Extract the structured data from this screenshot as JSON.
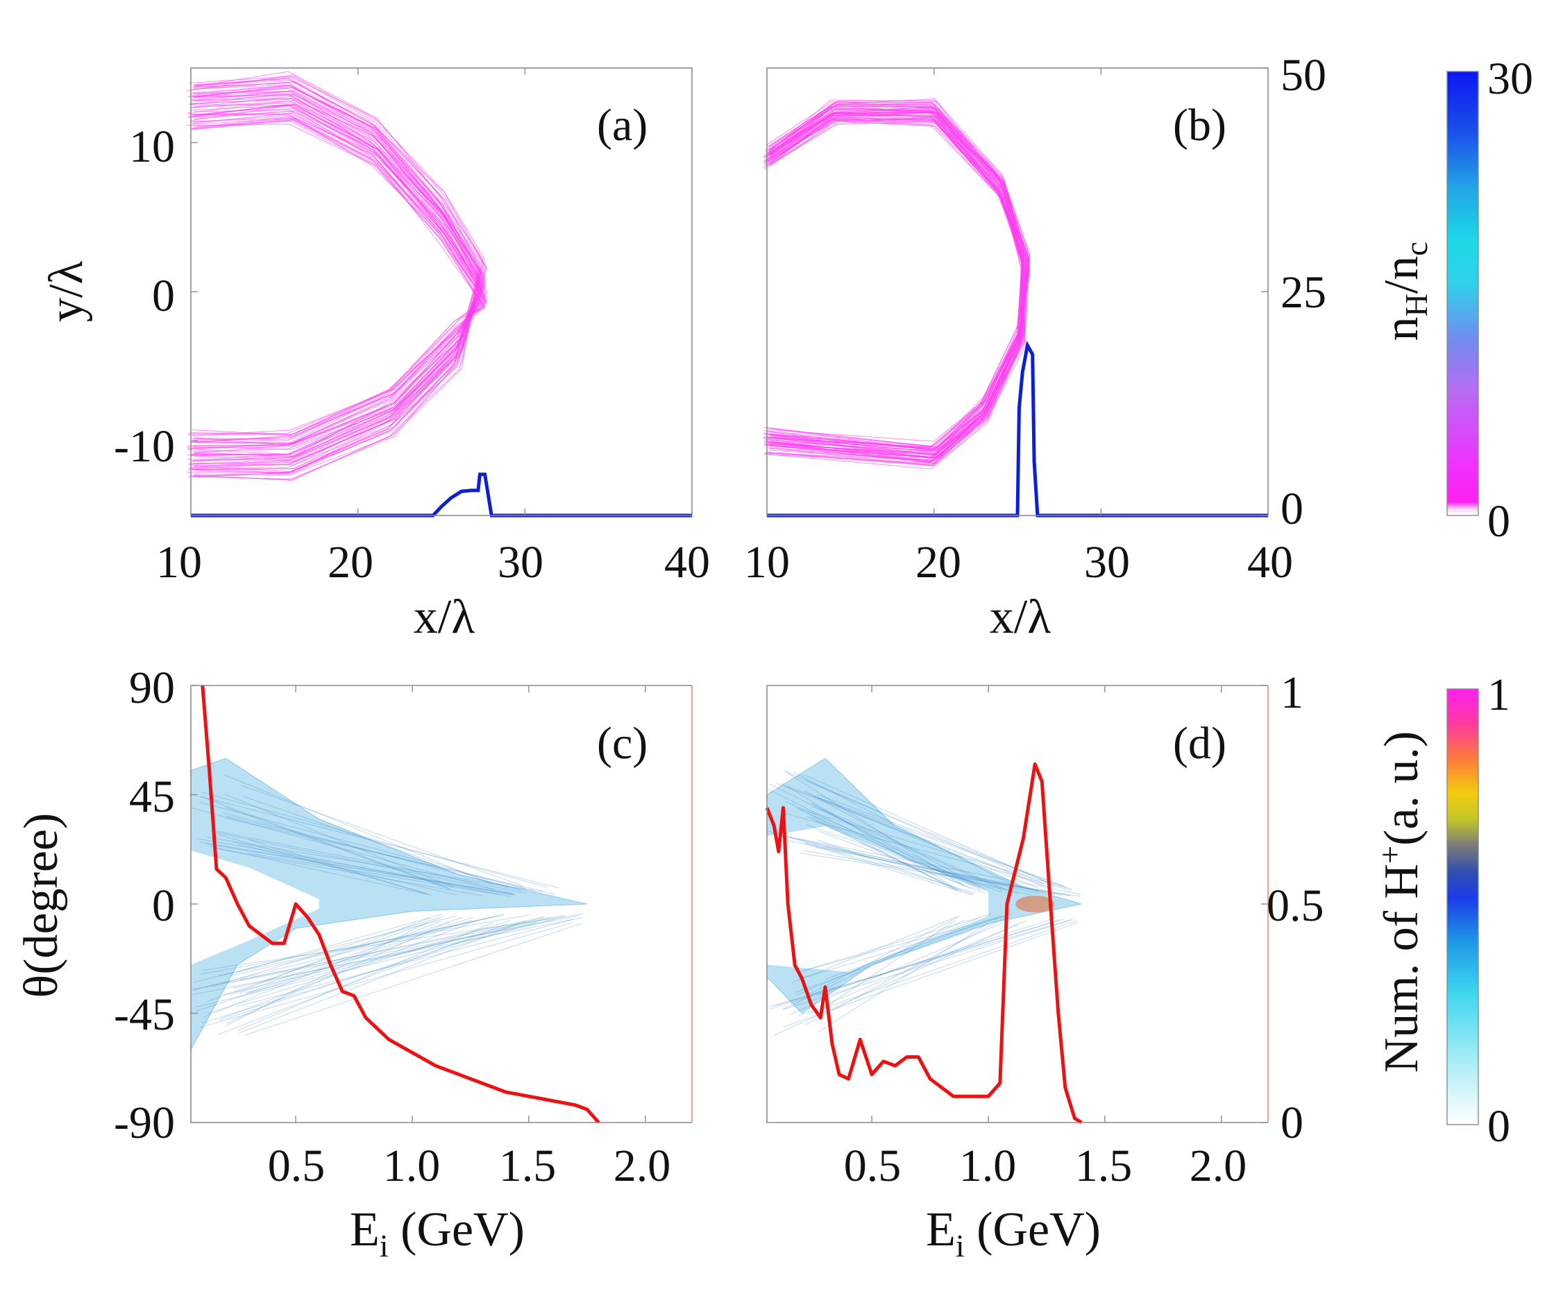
{
  "colors": {
    "shell": "#ff3cf0",
    "density_line": "#0a1fd8",
    "spectrum_line": "#ee1111",
    "scatter": "#3aa6e0"
  },
  "chart_data": [
    {
      "id": "a",
      "type": "scatter",
      "panel_label": "(a)",
      "xlabel": "x/λ",
      "ylabel": "y/λ",
      "xlim": [
        10,
        40
      ],
      "ylim": [
        -15,
        15
      ],
      "x_ticks": [
        "10",
        "20",
        "30",
        "40"
      ],
      "y_ticks": [
        "10",
        "0",
        "-10"
      ],
      "y_tick_values": [
        10,
        0,
        -10
      ],
      "right_axis": {
        "ylim": [
          0,
          50
        ],
        "ticks": [],
        "tick_values": []
      },
      "shell": {
        "description_points": [
          [
            10,
            12.5
          ],
          [
            16,
            13
          ],
          [
            21,
            10
          ],
          [
            25,
            5
          ],
          [
            27.5,
            0.5
          ],
          [
            26,
            -3.5
          ],
          [
            22,
            -8
          ],
          [
            16,
            -11
          ],
          [
            10,
            -11
          ]
        ]
      },
      "density_line": {
        "name": "n_H/n_c along axis",
        "x": [
          10,
          24.5,
          25,
          25.6,
          26.2,
          26.8,
          27.2,
          27.3,
          27.6,
          28,
          40
        ],
        "y": [
          0,
          0,
          1,
          2,
          2.7,
          2.8,
          2.8,
          4.6,
          4.6,
          0,
          0
        ]
      }
    },
    {
      "id": "b",
      "type": "scatter",
      "panel_label": "(b)",
      "xlabel": "x/λ",
      "ylabel": "",
      "xlim": [
        10,
        40
      ],
      "ylim": [
        -15,
        15
      ],
      "x_ticks": [
        "10",
        "20",
        "30",
        "40"
      ],
      "y_ticks": [],
      "y_tick_values": [],
      "right_axis": {
        "ylim": [
          0,
          50
        ],
        "ticks": [
          "50",
          "25",
          "0"
        ],
        "tick_values": [
          50,
          25,
          0
        ]
      },
      "shell": {
        "description_points": [
          [
            10,
            9
          ],
          [
            14,
            12
          ],
          [
            20,
            12
          ],
          [
            24,
            7
          ],
          [
            25.5,
            2
          ],
          [
            25.2,
            -3
          ],
          [
            23,
            -8
          ],
          [
            20,
            -11
          ],
          [
            10,
            -10
          ]
        ]
      },
      "density_line": {
        "name": "n_H/n_c along axis",
        "x": [
          10,
          25.0,
          25.1,
          25.3,
          25.6,
          25.9,
          26.0,
          26.2,
          40
        ],
        "y": [
          0,
          0,
          12,
          16,
          19,
          18,
          6,
          0,
          0
        ]
      }
    },
    {
      "id": "c",
      "type": "scatter",
      "panel_label": "(c)",
      "xlabel": "E",
      "xlabel_sub": "i",
      "xlabel_unit": " (GeV)",
      "ylabel": "θ(degree)",
      "xlim": [
        0.05,
        2.2
      ],
      "ylim": [
        -90,
        90
      ],
      "x_ticks": [
        "0.5",
        "1.0",
        "1.5",
        "2.0"
      ],
      "x_tick_values": [
        0.5,
        1.0,
        1.5,
        2.0
      ],
      "y_ticks": [
        "90",
        "45",
        "0",
        "-45",
        "-90"
      ],
      "y_tick_values": [
        90,
        45,
        0,
        -45,
        -90
      ],
      "right_axis": {
        "ylim": [
          0,
          1
        ],
        "ticks": [],
        "tick_values": []
      },
      "angular_band": {
        "upper_edge": [
          [
            0.05,
            55
          ],
          [
            0.2,
            60
          ],
          [
            0.6,
            35
          ],
          [
            1.2,
            12
          ],
          [
            1.75,
            0
          ]
        ],
        "lower_edge": [
          [
            1.75,
            0
          ],
          [
            1.0,
            -3
          ],
          [
            0.5,
            -10
          ],
          [
            0.25,
            -25
          ],
          [
            0.05,
            -60
          ]
        ],
        "inner_gap_top": [
          [
            0.05,
            22
          ],
          [
            0.3,
            15
          ],
          [
            0.6,
            2
          ]
        ],
        "inner_gap_bottom": [
          [
            0.6,
            -2
          ],
          [
            0.3,
            -15
          ],
          [
            0.05,
            -25
          ]
        ]
      },
      "spectrum": {
        "name": "Number of H+ (a.u.)",
        "x": [
          0.1,
          0.13,
          0.16,
          0.2,
          0.25,
          0.3,
          0.35,
          0.4,
          0.45,
          0.5,
          0.55,
          0.6,
          0.65,
          0.7,
          0.75,
          0.8,
          0.9,
          1.0,
          1.1,
          1.2,
          1.3,
          1.4,
          1.5,
          1.6,
          1.7,
          1.75,
          1.8
        ],
        "y": [
          1.0,
          0.8,
          0.58,
          0.56,
          0.5,
          0.45,
          0.43,
          0.41,
          0.41,
          0.5,
          0.47,
          0.43,
          0.36,
          0.3,
          0.29,
          0.24,
          0.19,
          0.16,
          0.13,
          0.11,
          0.09,
          0.07,
          0.06,
          0.05,
          0.04,
          0.03,
          0.0
        ]
      }
    },
    {
      "id": "d",
      "type": "scatter",
      "panel_label": "(d)",
      "xlabel": "E",
      "xlabel_sub": "i",
      "xlabel_unit": " (GeV)",
      "ylabel": "",
      "xlim": [
        0.05,
        2.2
      ],
      "ylim": [
        -90,
        90
      ],
      "x_ticks": [
        "0.5",
        "1.0",
        "1.5",
        "2.0"
      ],
      "x_tick_values": [
        0.5,
        1.0,
        1.5,
        2.0
      ],
      "y_ticks": [],
      "y_tick_values": [],
      "right_axis": {
        "ylim": [
          0,
          1
        ],
        "ticks": [
          "1",
          "0.5",
          "0"
        ],
        "tick_values": [
          1,
          0.5,
          0
        ]
      },
      "angular_band": {
        "upper_edge": [
          [
            0.05,
            45
          ],
          [
            0.3,
            60
          ],
          [
            0.6,
            32
          ],
          [
            1.15,
            7
          ],
          [
            1.4,
            0
          ]
        ],
        "lower_edge": [
          [
            1.4,
            0
          ],
          [
            1.0,
            -8
          ],
          [
            0.5,
            -25
          ],
          [
            0.2,
            -45
          ],
          [
            0.05,
            -30
          ]
        ],
        "inner_gap_top": [
          [
            0.05,
            28
          ],
          [
            0.3,
            32
          ],
          [
            1.0,
            5
          ]
        ],
        "inner_gap_bottom": [
          [
            1.0,
            -5
          ],
          [
            0.4,
            -28
          ],
          [
            0.05,
            -25
          ]
        ]
      },
      "spectrum": {
        "name": "Number of H+ (a.u.)",
        "x": [
          0.05,
          0.08,
          0.1,
          0.12,
          0.14,
          0.17,
          0.2,
          0.24,
          0.28,
          0.3,
          0.33,
          0.36,
          0.4,
          0.45,
          0.5,
          0.55,
          0.6,
          0.65,
          0.7,
          0.75,
          0.8,
          0.85,
          0.9,
          0.95,
          1.0,
          1.05,
          1.08,
          1.15,
          1.2,
          1.23,
          1.26,
          1.3,
          1.33,
          1.37,
          1.4
        ],
        "y": [
          0.72,
          0.68,
          0.62,
          0.72,
          0.5,
          0.36,
          0.33,
          0.27,
          0.24,
          0.31,
          0.18,
          0.11,
          0.1,
          0.19,
          0.11,
          0.14,
          0.13,
          0.15,
          0.15,
          0.1,
          0.08,
          0.06,
          0.06,
          0.06,
          0.06,
          0.09,
          0.5,
          0.65,
          0.82,
          0.78,
          0.55,
          0.25,
          0.08,
          0.01,
          0.0
        ]
      }
    }
  ],
  "colorbars": [
    {
      "id": "density",
      "label_main": "n",
      "label_sub1": "H",
      "label_mid": "/n",
      "label_sub2": "c",
      "min_label": "0",
      "max_label": "30",
      "min": 0,
      "max": 30
    },
    {
      "id": "count",
      "label": "Num. of H",
      "label_sup": "+",
      "label_tail": "(a. u.)",
      "min_label": "0",
      "max_label": "1",
      "min": 0,
      "max": 1
    }
  ]
}
